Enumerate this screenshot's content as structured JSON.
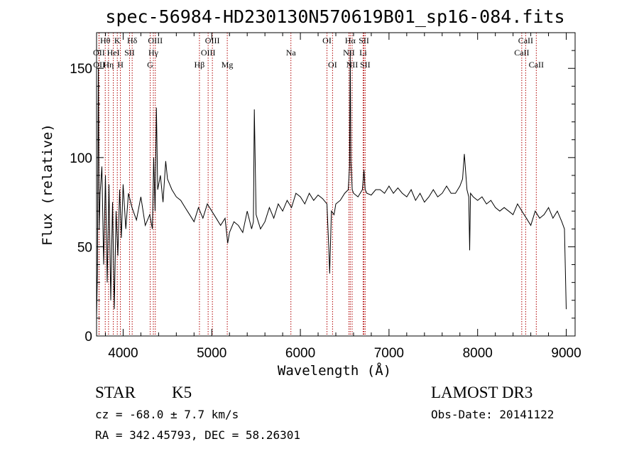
{
  "chart_data": {
    "type": "line",
    "title": "spec-56984-HD230130N570619B01_sp16-084.fits",
    "xlabel": "Wavelength (Å)",
    "ylabel": "Flux (relative)",
    "xlim": [
      3700,
      9100
    ],
    "ylim": [
      0,
      170
    ],
    "xticks": [
      4000,
      5000,
      6000,
      7000,
      8000,
      9000
    ],
    "yticks": [
      0,
      50,
      100,
      150
    ],
    "series": [
      {
        "name": "flux",
        "x": [
          3700,
          3710,
          3720,
          3730,
          3740,
          3760,
          3780,
          3800,
          3820,
          3840,
          3860,
          3880,
          3900,
          3920,
          3940,
          3960,
          3980,
          4000,
          4030,
          4060,
          4100,
          4150,
          4200,
          4250,
          4300,
          4330,
          4345,
          4360,
          4375,
          4390,
          4420,
          4450,
          4480,
          4500,
          4550,
          4600,
          4650,
          4700,
          4750,
          4800,
          4850,
          4900,
          4950,
          5000,
          5050,
          5100,
          5150,
          5180,
          5200,
          5250,
          5300,
          5350,
          5400,
          5450,
          5470,
          5480,
          5500,
          5550,
          5600,
          5650,
          5700,
          5750,
          5800,
          5850,
          5900,
          5950,
          6000,
          6050,
          6100,
          6150,
          6200,
          6250,
          6300,
          6320,
          6330,
          6350,
          6380,
          6400,
          6450,
          6500,
          6540,
          6555,
          6563,
          6570,
          6585,
          6600,
          6650,
          6700,
          6717,
          6731,
          6750,
          6800,
          6850,
          6900,
          6950,
          7000,
          7050,
          7100,
          7150,
          7200,
          7250,
          7300,
          7350,
          7400,
          7450,
          7500,
          7550,
          7600,
          7650,
          7700,
          7750,
          7800,
          7830,
          7850,
          7880,
          7900,
          7910,
          7920,
          7950,
          8000,
          8050,
          8100,
          8150,
          8200,
          8250,
          8300,
          8350,
          8400,
          8450,
          8500,
          8550,
          8600,
          8650,
          8700,
          8750,
          8800,
          8850,
          8900,
          8950,
          8980,
          9000
        ],
        "values": [
          10,
          35,
          150,
          60,
          80,
          95,
          40,
          90,
          30,
          85,
          20,
          75,
          15,
          70,
          45,
          82,
          55,
          85,
          60,
          80,
          72,
          65,
          78,
          62,
          68,
          60,
          100,
          70,
          128,
          82,
          90,
          75,
          98,
          88,
          82,
          78,
          76,
          72,
          68,
          64,
          72,
          66,
          74,
          70,
          66,
          62,
          66,
          52,
          58,
          64,
          62,
          58,
          70,
          60,
          64,
          127,
          68,
          60,
          64,
          72,
          66,
          74,
          70,
          76,
          72,
          80,
          78,
          74,
          80,
          76,
          79,
          77,
          74,
          50,
          35,
          70,
          68,
          74,
          76,
          80,
          82,
          95,
          160,
          98,
          82,
          80,
          78,
          82,
          93,
          82,
          80,
          79,
          82,
          82,
          80,
          84,
          80,
          83,
          80,
          78,
          82,
          76,
          80,
          75,
          78,
          82,
          78,
          80,
          84,
          80,
          80,
          84,
          88,
          102,
          82,
          78,
          48,
          80,
          78,
          76,
          78,
          74,
          76,
          72,
          70,
          72,
          70,
          68,
          74,
          70,
          66,
          62,
          70,
          66,
          68,
          72,
          66,
          70,
          64,
          60,
          15
        ]
      }
    ],
    "spectral_lines": [
      {
        "label": "Hθ",
        "x": 3798,
        "row": 0
      },
      {
        "label": "OII",
        "x": 3727,
        "row": 1
      },
      {
        "label": "OII",
        "x": 3729,
        "row": 2
      },
      {
        "label": "Hη",
        "x": 3835,
        "row": 2
      },
      {
        "label": "HeI",
        "x": 3889,
        "row": 1
      },
      {
        "label": "K",
        "x": 3934,
        "row": 0
      },
      {
        "label": "H",
        "x": 3969,
        "row": 2
      },
      {
        "label": "SII",
        "x": 4072,
        "row": 1
      },
      {
        "label": "Hδ",
        "x": 4102,
        "row": 0
      },
      {
        "label": "OIII",
        "x": 4363,
        "row": 0
      },
      {
        "label": "Hγ",
        "x": 4341,
        "row": 1
      },
      {
        "label": "G",
        "x": 4305,
        "row": 2
      },
      {
        "label": "Hβ",
        "x": 4861,
        "row": 2
      },
      {
        "label": "OIII",
        "x": 4959,
        "row": 1
      },
      {
        "label": "OIII",
        "x": 5007,
        "row": 0
      },
      {
        "label": "Mg",
        "x": 5175,
        "row": 2
      },
      {
        "label": "Na",
        "x": 5893,
        "row": 1
      },
      {
        "label": "OI",
        "x": 6300,
        "row": 0
      },
      {
        "label": "OI",
        "x": 6363,
        "row": 2
      },
      {
        "label": "Hα",
        "x": 6563,
        "row": 0
      },
      {
        "label": "NII",
        "x": 6548,
        "row": 1
      },
      {
        "label": "NII",
        "x": 6584,
        "row": 2
      },
      {
        "label": "SII",
        "x": 6717,
        "row": 0
      },
      {
        "label": "Li",
        "x": 6708,
        "row": 1
      },
      {
        "label": "SII",
        "x": 6731,
        "row": 2
      },
      {
        "label": "CaII",
        "x": 8542,
        "row": 0
      },
      {
        "label": "CaII",
        "x": 8498,
        "row": 1
      },
      {
        "label": "CaII",
        "x": 8662,
        "row": 2
      }
    ]
  },
  "info": {
    "object_class": "STAR",
    "subclass": "K5",
    "survey": "LAMOST DR3",
    "redshift": "cz = -68.0 ± 7.7 km/s",
    "obs_date": "Obs-Date: 20141122",
    "coords": "RA = 342.45793, DEC =  58.26301"
  },
  "colors": {
    "line_marker": "#b00000",
    "spectrum": "#000000",
    "axis": "#000000"
  }
}
